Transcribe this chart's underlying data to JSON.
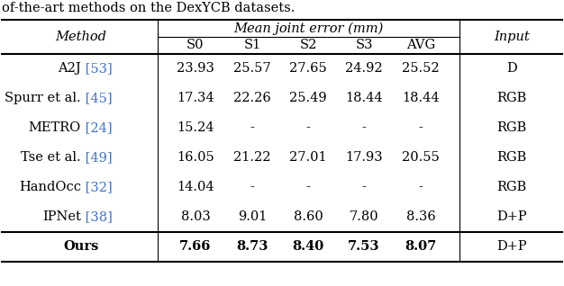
{
  "caption_text": "of-the-art methods on the DexYCB datasets.",
  "header_group": "Mean joint error (mm)",
  "rows": [
    {
      "method_base": "A2J",
      "ref": "53",
      "values": [
        "23.93",
        "25.57",
        "27.65",
        "24.92",
        "25.52"
      ],
      "input": "D",
      "bold": false
    },
    {
      "method_base": "Spurr et al.",
      "ref": "45",
      "values": [
        "17.34",
        "22.26",
        "25.49",
        "18.44",
        "18.44"
      ],
      "input": "RGB",
      "bold": false
    },
    {
      "method_base": "METRO",
      "ref": "24",
      "values": [
        "15.24",
        "-",
        "-",
        "-",
        "-"
      ],
      "input": "RGB",
      "bold": false
    },
    {
      "method_base": "Tse et al.",
      "ref": "49",
      "values": [
        "16.05",
        "21.22",
        "27.01",
        "17.93",
        "20.55"
      ],
      "input": "RGB",
      "bold": false
    },
    {
      "method_base": "HandOcc",
      "ref": "32",
      "values": [
        "14.04",
        "-",
        "-",
        "-",
        "-"
      ],
      "input": "RGB",
      "bold": false
    },
    {
      "method_base": "IPNet",
      "ref": "38",
      "values": [
        "8.03",
        "9.01",
        "8.60",
        "7.80",
        "8.36"
      ],
      "input": "D+P",
      "bold": false
    },
    {
      "method_base": "Ours",
      "ref": null,
      "values": [
        "7.66",
        "8.73",
        "8.40",
        "7.53",
        "8.07"
      ],
      "input": "D+P",
      "bold": true
    }
  ],
  "ref_color": "#4472C4",
  "text_color": "#000000",
  "bg_color": "#FFFFFF",
  "line_color": "#000000",
  "font_size": 10.5,
  "caption_font_size": 10.5,
  "header_font_size": 10.5
}
